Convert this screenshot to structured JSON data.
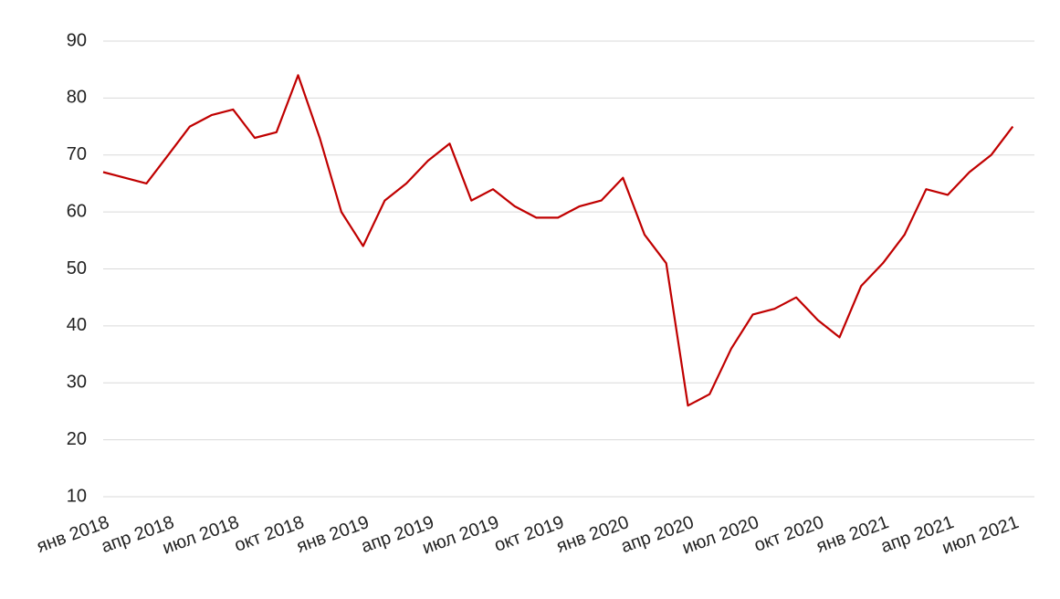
{
  "chart_data": {
    "type": "line",
    "x": [
      "2018-01",
      "2018-02",
      "2018-03",
      "2018-04",
      "2018-05",
      "2018-06",
      "2018-07",
      "2018-08",
      "2018-09",
      "2018-10",
      "2018-11",
      "2018-12",
      "2019-01",
      "2019-02",
      "2019-03",
      "2019-04",
      "2019-05",
      "2019-06",
      "2019-07",
      "2019-08",
      "2019-09",
      "2019-10",
      "2019-11",
      "2019-12",
      "2020-01",
      "2020-02",
      "2020-03",
      "2020-04",
      "2020-05",
      "2020-06",
      "2020-07",
      "2020-08",
      "2020-09",
      "2020-10",
      "2020-11",
      "2020-12",
      "2021-01",
      "2021-02",
      "2021-03",
      "2021-04",
      "2021-05",
      "2021-06",
      "2021-07"
    ],
    "series": [
      {
        "color": "#c00000",
        "values": [
          67,
          66,
          65,
          70,
          75,
          77,
          78,
          73,
          74,
          84,
          73,
          60,
          54,
          62,
          65,
          69,
          72,
          62,
          64,
          61,
          59,
          59,
          61,
          62,
          66,
          56,
          51,
          26,
          28,
          36,
          42,
          43,
          45,
          41,
          38,
          47,
          51,
          56,
          64,
          63,
          67,
          70,
          75
        ]
      }
    ],
    "xlim": [
      "2018-01",
      "2021-08"
    ],
    "xticks": [
      {
        "value": "2018-01",
        "label": "янв 2018"
      },
      {
        "value": "2018-04",
        "label": "апр 2018"
      },
      {
        "value": "2018-07",
        "label": "июл 2018"
      },
      {
        "value": "2018-10",
        "label": "окт 2018"
      },
      {
        "value": "2019-01",
        "label": "янв 2019"
      },
      {
        "value": "2019-04",
        "label": "апр 2019"
      },
      {
        "value": "2019-07",
        "label": "июл 2019"
      },
      {
        "value": "2019-10",
        "label": "окт 2019"
      },
      {
        "value": "2020-01",
        "label": "янв 2020"
      },
      {
        "value": "2020-04",
        "label": "апр 2020"
      },
      {
        "value": "2020-07",
        "label": "июл 2020"
      },
      {
        "value": "2020-10",
        "label": "окт 2020"
      },
      {
        "value": "2021-01",
        "label": "янв 2021"
      },
      {
        "value": "2021-04",
        "label": "апр 2021"
      },
      {
        "value": "2021-07",
        "label": "июл 2021"
      }
    ],
    "ylim": [
      10,
      90
    ],
    "yticks": [
      10,
      20,
      30,
      40,
      50,
      60,
      70,
      80,
      90
    ],
    "grid": true
  }
}
